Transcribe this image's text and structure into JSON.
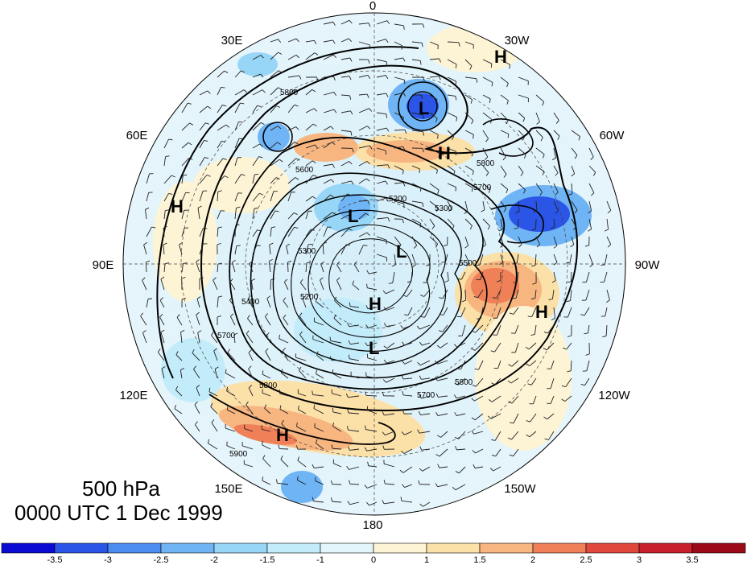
{
  "title": {
    "level": "500 hPa",
    "time": "0000 UTC 1 Dec 1999"
  },
  "longitude_labels": [
    "0",
    "30W",
    "60W",
    "90W",
    "120W",
    "150W",
    "180",
    "150E",
    "120E",
    "90E",
    "60E",
    "30E"
  ],
  "pressure_centers": [
    {
      "label": "L",
      "kind": "low"
    },
    {
      "label": "H",
      "kind": "high"
    },
    {
      "label": "H",
      "kind": "high"
    },
    {
      "label": "L",
      "kind": "low"
    },
    {
      "label": "L",
      "kind": "low"
    },
    {
      "label": "H",
      "kind": "high"
    },
    {
      "label": "H",
      "kind": "high"
    },
    {
      "label": "L",
      "kind": "low"
    },
    {
      "label": "H",
      "kind": "high"
    },
    {
      "label": "H",
      "kind": "high"
    }
  ],
  "contour_labels": [
    "5800",
    "5600",
    "5700",
    "5800",
    "5200",
    "5300",
    "5300",
    "5200",
    "5800",
    "5700",
    "5700",
    "5800",
    "5900",
    "5400",
    "5500"
  ],
  "colorbar": {
    "ticks": [
      "-3.5",
      "-3",
      "-2.5",
      "-2",
      "-1.5",
      "-1",
      "0",
      "1",
      "1.5",
      "2",
      "2.5",
      "3",
      "3.5"
    ],
    "colors": [
      "#0a0ad2",
      "#2a55e6",
      "#4a8cf0",
      "#6fb4f5",
      "#97d6f7",
      "#c3ecfa",
      "#e3f6fb",
      "#fdf4d6",
      "#fbe0a8",
      "#f7b580",
      "#f08058",
      "#e0483c",
      "#c8202c",
      "#9c0a1a"
    ]
  }
}
